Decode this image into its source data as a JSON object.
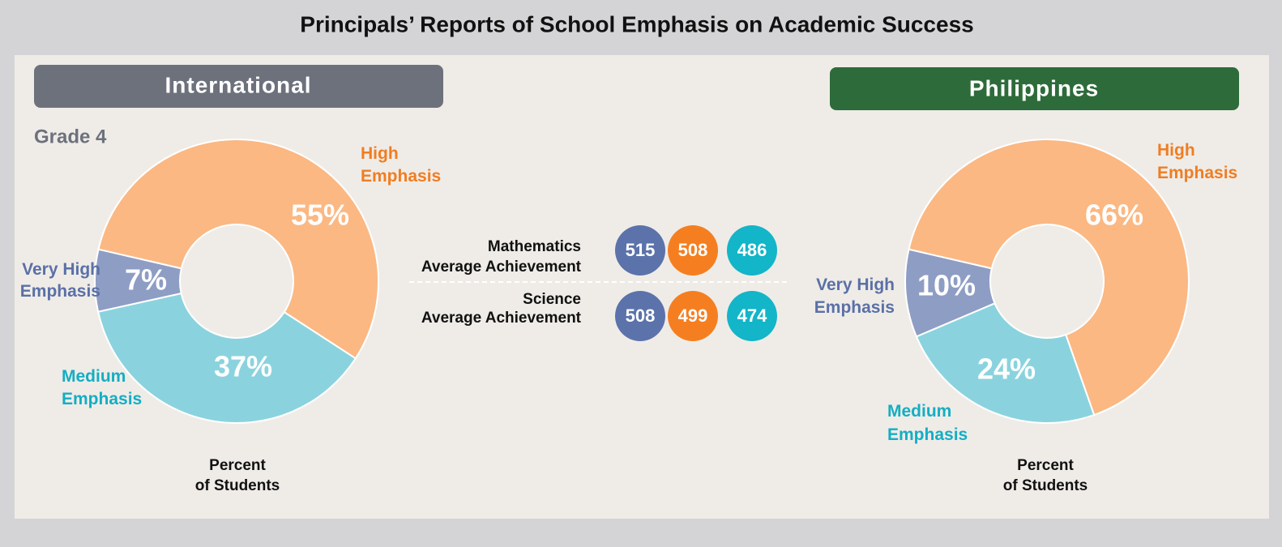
{
  "title": "Principals’ Reports of School Emphasis on Academic Success",
  "chart_data": [
    {
      "type": "pie",
      "donut": true,
      "title": "International",
      "subtitle": "Grade 4",
      "categories": [
        "Very High Emphasis",
        "High Emphasis",
        "Medium Emphasis"
      ],
      "values": [
        7,
        55,
        37
      ],
      "value_labels": [
        "7%",
        "55%",
        "37%"
      ],
      "colors": [
        "#8e9dc4",
        "#fbb883",
        "#8ad3de"
      ],
      "xlabel": "Percent of Students"
    },
    {
      "type": "pie",
      "donut": true,
      "title": "Philippines",
      "categories": [
        "Very High Emphasis",
        "High Emphasis",
        "Medium Emphasis"
      ],
      "values": [
        10,
        66,
        24
      ],
      "value_labels": [
        "10%",
        "66%",
        "24%"
      ],
      "colors": [
        "#8e9dc4",
        "#fbb883",
        "#8ad3de"
      ],
      "xlabel": "Percent of Students"
    }
  ],
  "achievement": {
    "colors": [
      "#5b73aa",
      "#f57f20",
      "#13b5c8"
    ],
    "rows": [
      {
        "label": "Mathematics Average Achievement",
        "values": [
          515,
          508,
          486
        ]
      },
      {
        "label": "Science Average Achievement",
        "values": [
          508,
          499,
          474
        ]
      }
    ]
  }
}
